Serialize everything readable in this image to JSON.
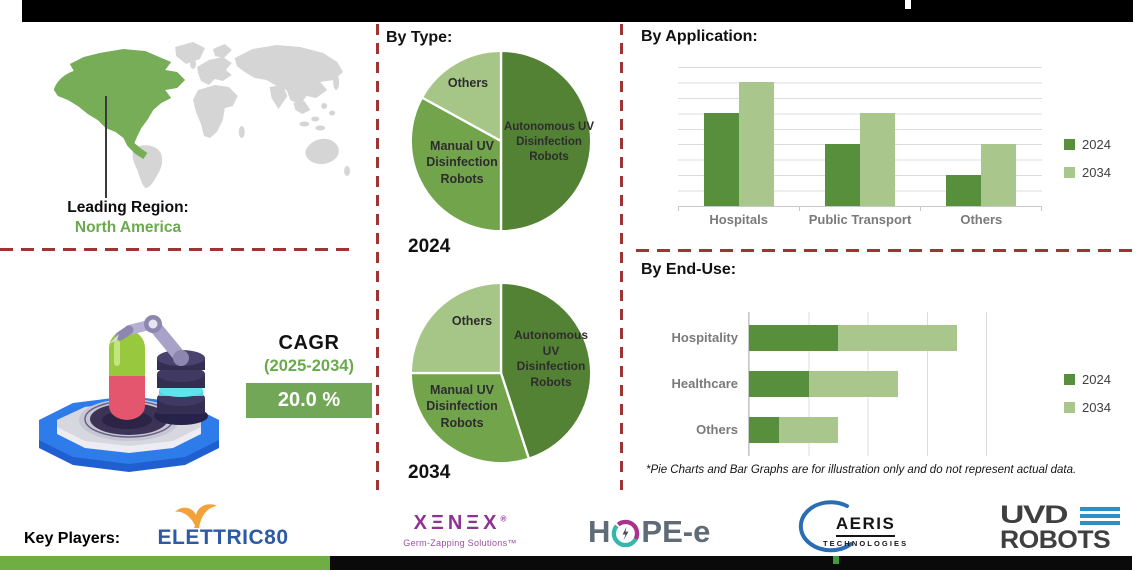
{
  "leading_region": {
    "label": "Leading Region:",
    "value": "North America"
  },
  "cagr": {
    "label": "CAGR",
    "period": "(2025-2034)",
    "value": "20.0 %"
  },
  "sections": {
    "by_type": "By Type:",
    "by_application": "By Application:",
    "by_end_use": "By End-Use:"
  },
  "footnote": "*Pie Charts and Bar Graphs are for illustration only and do not represent actual data.",
  "key_players": {
    "label": "Key Players:",
    "elettric80": {
      "text": "ELETTRIC80"
    },
    "xenex": {
      "text": "XΞNΞX",
      "reg": "®",
      "tagline": "Germ-Zapping Solutions™"
    },
    "hope_e": {
      "left": "H",
      "right": "PE-e"
    },
    "aeris": {
      "text": "AERIS",
      "subtext": "TECHNOLOGIES"
    },
    "uvd": {
      "line1": "UVD",
      "line2": "ROBOTS"
    }
  },
  "colors": {
    "pie_green_dark": "#538234",
    "pie_green_mid": "#72a44c",
    "pie_green_light": "#a6c688",
    "bar_green_2024": "#588f3c",
    "bar_green_2034": "#a9c68c",
    "map_highlight": "#76ad56",
    "map_base": "#d5d5d5",
    "divider_red": "#9e3434",
    "cagr_box_green": "#73a758",
    "text_green": "#6aaa4e"
  },
  "chart_data": [
    {
      "type": "pie",
      "title": "2024",
      "group": "By Type",
      "labels": [
        "Autonomous UV Disinfection Robots",
        "Manual UV Disinfection Robots",
        "Others"
      ],
      "values": [
        50,
        33,
        17
      ],
      "colors": [
        "#538234",
        "#72a44c",
        "#a6c688"
      ],
      "start_angle_deg": 0,
      "direction": "clockwise"
    },
    {
      "type": "pie",
      "title": "2034",
      "group": "By Type",
      "labels": [
        "Autonomous UV Disinfection Robots",
        "Manual UV Disinfection Robots",
        "Others"
      ],
      "values": [
        45,
        30,
        25
      ],
      "colors": [
        "#538234",
        "#72a44c",
        "#a6c688"
      ],
      "start_angle_deg": 0,
      "direction": "clockwise"
    },
    {
      "type": "bar",
      "group": "By Application",
      "categories": [
        "Hospitals",
        "Public Transport",
        "Others"
      ],
      "series": [
        {
          "name": "2024",
          "color": "#588f3c",
          "values": [
            60,
            40,
            20
          ]
        },
        {
          "name": "2034",
          "color": "#a9c68c",
          "values": [
            80,
            60,
            40
          ]
        }
      ],
      "ylim": [
        0,
        90
      ],
      "gridline_step": 10,
      "grid": true,
      "legend_position": "right"
    },
    {
      "type": "stacked-hbar",
      "group": "By End-Use",
      "categories": [
        "Hospitality",
        "Healthcare",
        "Others"
      ],
      "series": [
        {
          "name": "2024",
          "color": "#588f3c",
          "values": [
            30,
            20,
            10
          ]
        },
        {
          "name": "2034",
          "color": "#a9c68c",
          "values": [
            40,
            30,
            20
          ]
        }
      ],
      "xlim": [
        0,
        80
      ],
      "gridline_step": 20,
      "grid": true,
      "legend_position": "right"
    }
  ]
}
